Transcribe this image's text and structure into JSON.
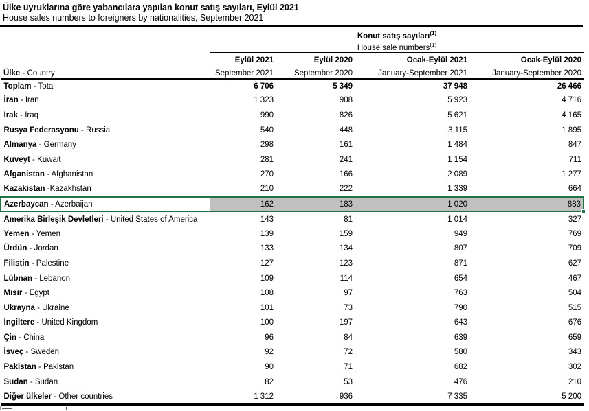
{
  "title": {
    "tr": "Ülke uyruklarına göre yabancılara yapılan konut satış sayıları, Eylül 2021",
    "en": "House sales numbers to foreigners by nationalities, September 2021"
  },
  "table": {
    "group_header": {
      "tr": "Konut satış sayıları",
      "en": "House sale numbers",
      "footnote_marker": "(1)"
    },
    "row_header": {
      "bold": "Ülke",
      "rest": " - Country"
    },
    "columns": [
      {
        "tr": "Eylül 2021",
        "en": "September 2021"
      },
      {
        "tr": "Eylül 2020",
        "en": "September 2020"
      },
      {
        "tr": "Ocak-Eylül 2021",
        "en": "January-September 2021"
      },
      {
        "tr": "Ocak-Eylül 2020",
        "en": "January-September 2020"
      }
    ],
    "rows": [
      {
        "tr": "Toplam",
        "sep": " - ",
        "en": "Total",
        "values": [
          "6 706",
          "5 349",
          "37 948",
          "26 466"
        ],
        "bold": true
      },
      {
        "tr": "İran",
        "sep": " - ",
        "en": "Iran",
        "values": [
          "1 323",
          "908",
          "5 923",
          "4 716"
        ]
      },
      {
        "tr": "Irak",
        "sep": " - ",
        "en": "Iraq",
        "values": [
          "990",
          "826",
          "5 621",
          "4 165"
        ]
      },
      {
        "tr": "Rusya Federasyonu",
        "sep": " - ",
        "en": "Russia",
        "values": [
          "540",
          "448",
          "3 115",
          "1 895"
        ]
      },
      {
        "tr": "Almanya",
        "sep": " - ",
        "en": "Germany",
        "values": [
          "298",
          "161",
          "1 484",
          "847"
        ]
      },
      {
        "tr": "Kuveyt",
        "sep": " - ",
        "en": "Kuwait",
        "values": [
          "281",
          "241",
          "1 154",
          "711"
        ]
      },
      {
        "tr": "Afganistan",
        "sep": " - ",
        "en": "Afghanistan",
        "values": [
          "270",
          "166",
          "2 089",
          "1 277"
        ]
      },
      {
        "tr": "Kazakistan",
        "sep": " -",
        "en": "Kazakhstan",
        "values": [
          "210",
          "222",
          "1 339",
          "664"
        ]
      },
      {
        "tr": "Azerbaycan",
        "sep": " - ",
        "en": "Azerbaijan",
        "values": [
          "162",
          "183",
          "1 020",
          "883"
        ]
      },
      {
        "tr": "Amerika Birleşik Devletleri",
        "sep": " - ",
        "en": "United States of America",
        "values": [
          "143",
          "81",
          "1 014",
          "327"
        ]
      },
      {
        "tr": "Yemen",
        "sep": " - ",
        "en": "Yemen",
        "values": [
          "139",
          "159",
          "949",
          "769"
        ]
      },
      {
        "tr": "Ürdün",
        "sep": " - ",
        "en": "Jordan",
        "values": [
          "133",
          "134",
          "807",
          "709"
        ]
      },
      {
        "tr": "Filistin",
        "sep": " - ",
        "en": "Palestine",
        "values": [
          "127",
          "123",
          "871",
          "627"
        ]
      },
      {
        "tr": "Lübnan",
        "sep": " - ",
        "en": "Lebanon",
        "values": [
          "109",
          "114",
          "654",
          "467"
        ]
      },
      {
        "tr": "Mısır",
        "sep": " - ",
        "en": "Egypt",
        "values": [
          "108",
          "97",
          "763",
          "504"
        ]
      },
      {
        "tr": "Ukrayna",
        "sep": " - ",
        "en": "Ukraine",
        "values": [
          "101",
          "73",
          "790",
          "515"
        ]
      },
      {
        "tr": "İngiltere",
        "sep": " - ",
        "en": "United Kingdom",
        "values": [
          "100",
          "197",
          "643",
          "676"
        ]
      },
      {
        "tr": "Çin",
        "sep": " - ",
        "en": "China",
        "values": [
          "96",
          "84",
          "639",
          "659"
        ]
      },
      {
        "tr": "İsveç",
        "sep": " - ",
        "en": "Sweden",
        "values": [
          "92",
          "72",
          "580",
          "343"
        ]
      },
      {
        "tr": "Pakistan",
        "sep": " - ",
        "en": "Pakistan",
        "values": [
          "90",
          "71",
          "682",
          "302"
        ]
      },
      {
        "tr": "Sudan",
        "sep": " - ",
        "en": "Sudan",
        "values": [
          "82",
          "53",
          "476",
          "210"
        ]
      },
      {
        "tr": "Diğer ülkeler",
        "sep": " - ",
        "en": "Other countries",
        "values": [
          "1 312",
          "936",
          "7 335",
          "5 200"
        ]
      }
    ]
  },
  "highlight": {
    "row_index": 8,
    "country": "Azerbaycan - Azerbaijan",
    "fill_color": "#c0c0c0",
    "border_color": "#217346"
  }
}
